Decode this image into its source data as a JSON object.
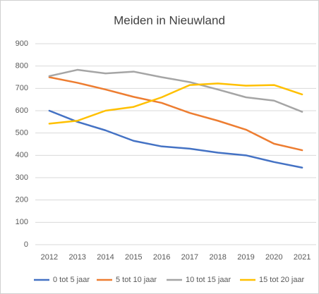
{
  "chart_data": {
    "type": "line",
    "title": "Meiden in Nieuwland",
    "categories": [
      "2012",
      "2013",
      "2014",
      "2015",
      "2016",
      "2017",
      "2018",
      "2019",
      "2020",
      "2021"
    ],
    "series": [
      {
        "name": "0 tot 5 jaar",
        "color": "#4472c4",
        "values": [
          600,
          550,
          512,
          465,
          440,
          430,
          412,
          400,
          370,
          345
        ]
      },
      {
        "name": "5 tot 10 jaar",
        "color": "#ed7d31",
        "values": [
          750,
          725,
          695,
          662,
          635,
          590,
          555,
          515,
          452,
          423
        ]
      },
      {
        "name": "10 tot 15 jaar",
        "color": "#a5a5a5",
        "values": [
          755,
          783,
          767,
          775,
          750,
          728,
          695,
          660,
          645,
          595
        ]
      },
      {
        "name": "15 tot 20 jaar",
        "color": "#ffc000",
        "values": [
          542,
          555,
          600,
          617,
          660,
          715,
          722,
          712,
          715,
          673
        ]
      }
    ],
    "ylim": [
      0,
      900
    ],
    "yticks": [
      0,
      100,
      200,
      300,
      400,
      500,
      600,
      700,
      800,
      900
    ],
    "grid": true,
    "legend": "bottom"
  }
}
